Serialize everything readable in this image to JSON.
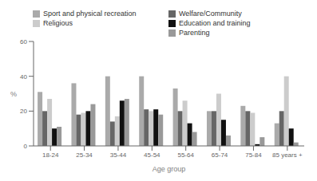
{
  "chart_data": {
    "type": "bar",
    "categories": [
      "18-24",
      "25-34",
      "35-44",
      "45-54",
      "55-64",
      "65-74",
      "75-84",
      "85 years +"
    ],
    "series": [
      {
        "name": "Sport and physical recreation",
        "color": "#aaaaaa",
        "values": [
          31,
          36,
          40,
          40,
          33,
          20,
          23,
          13
        ]
      },
      {
        "name": "Welfare/Community",
        "color": "#666666",
        "values": [
          20,
          18,
          14,
          21,
          20,
          20,
          20,
          20
        ]
      },
      {
        "name": "Religious",
        "color": "#cccccc",
        "values": [
          27,
          19,
          17,
          20,
          26,
          30,
          19,
          40
        ]
      },
      {
        "name": "Education and training",
        "color": "#111111",
        "values": [
          10,
          20,
          26,
          21,
          13,
          15,
          1,
          10
        ]
      },
      {
        "name": "Parenting",
        "color": "#999999",
        "values": [
          11,
          24,
          27,
          18,
          8,
          6,
          5,
          2
        ]
      }
    ],
    "xlabel": "Age group",
    "ylabel": "%",
    "ylim": [
      0,
      60
    ],
    "yticks": [
      0,
      20,
      40,
      60
    ],
    "legend": "upper right"
  }
}
